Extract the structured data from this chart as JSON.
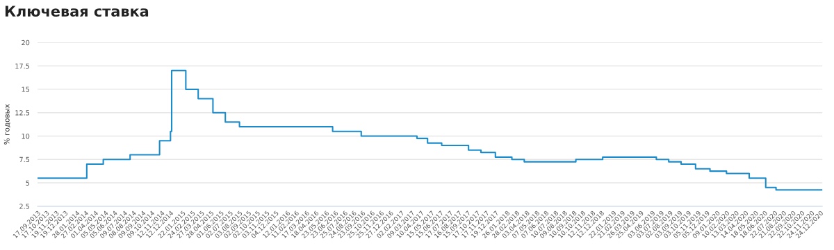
{
  "chart_data": {
    "type": "step",
    "title": "Ключевая ставка",
    "ylabel": "% годовых",
    "x": [
      "2013-09-17",
      "2014-03-03",
      "2014-04-28",
      "2014-07-28",
      "2014-11-05",
      "2014-12-12",
      "2014-12-16",
      "2015-02-02",
      "2015-03-16",
      "2015-05-05",
      "2015-06-16",
      "2015-08-03",
      "2016-06-14",
      "2016-09-19",
      "2017-03-27",
      "2017-05-02",
      "2017-06-19",
      "2017-09-18",
      "2017-10-30",
      "2017-12-18",
      "2018-02-12",
      "2018-03-26",
      "2018-09-17",
      "2018-12-17",
      "2019-06-17",
      "2019-07-29",
      "2019-09-09",
      "2019-10-28",
      "2019-12-16",
      "2020-02-10",
      "2020-04-27",
      "2020-06-22",
      "2020-07-27",
      "2020-12-31"
    ],
    "series": [
      {
        "color": "#1a8ccc",
        "values": [
          5.5,
          7,
          7.5,
          8,
          9.5,
          10.5,
          17,
          15,
          14,
          12.5,
          11.5,
          11,
          10.5,
          10,
          9.75,
          9.25,
          9,
          8.5,
          8.25,
          7.75,
          7.5,
          7.25,
          7.5,
          7.75,
          7.5,
          7.25,
          7,
          6.5,
          6.25,
          6,
          5.5,
          4.5,
          4.25,
          4.25
        ]
      }
    ],
    "xlim": [
      "2013-09-17",
      "2020-12-31"
    ],
    "xticks": [
      {
        "value": "2013-09-17",
        "label": "17.09.2013"
      },
      {
        "value": "2013-10-17",
        "label": "17.10.2013"
      },
      {
        "value": "2013-11-19",
        "label": "19.11.2013"
      },
      {
        "value": "2013-12-19",
        "label": "19.12.2013"
      },
      {
        "value": "2014-01-28",
        "label": "28.01.2014"
      },
      {
        "value": "2014-02-27",
        "label": "27.02.2014"
      },
      {
        "value": "2014-04-01",
        "label": "01.04.2014"
      },
      {
        "value": "2014-05-05",
        "label": "05.05.2014"
      },
      {
        "value": "2014-06-05",
        "label": "05.06.2014"
      },
      {
        "value": "2014-07-09",
        "label": "09.07.2014"
      },
      {
        "value": "2014-08-08",
        "label": "08.08.2014"
      },
      {
        "value": "2014-09-09",
        "label": "09.09.2014"
      },
      {
        "value": "2014-10-09",
        "label": "09.10.2014"
      },
      {
        "value": "2014-11-12",
        "label": "12.11.2014"
      },
      {
        "value": "2014-12-12",
        "label": "12.12.2014"
      },
      {
        "value": "2015-01-22",
        "label": "22.01.2015"
      },
      {
        "value": "2015-02-24",
        "label": "24.02.2015"
      },
      {
        "value": "2015-03-27",
        "label": "27.03.2015"
      },
      {
        "value": "2015-04-28",
        "label": "28.04.2015"
      },
      {
        "value": "2015-06-01",
        "label": "01.06.2015"
      },
      {
        "value": "2015-07-02",
        "label": "02.07.2015"
      },
      {
        "value": "2015-08-03",
        "label": "03.08.2015"
      },
      {
        "value": "2015-09-02",
        "label": "02.09.2015"
      },
      {
        "value": "2015-10-02",
        "label": "02.10.2015"
      },
      {
        "value": "2015-11-03",
        "label": "03.11.2015"
      },
      {
        "value": "2015-12-04",
        "label": "04.12.2015"
      },
      {
        "value": "2016-01-12",
        "label": "12.01.2016"
      },
      {
        "value": "2016-02-11",
        "label": "11.02.2016"
      },
      {
        "value": "2016-03-17",
        "label": "17.03.2016"
      },
      {
        "value": "2016-04-18",
        "label": "18.04.2016"
      },
      {
        "value": "2016-05-23",
        "label": "23.05.2016"
      },
      {
        "value": "2016-06-23",
        "label": "23.06.2016"
      },
      {
        "value": "2016-07-25",
        "label": "25.07.2016"
      },
      {
        "value": "2016-08-24",
        "label": "24.08.2016"
      },
      {
        "value": "2016-09-23",
        "label": "23.09.2016"
      },
      {
        "value": "2016-10-25",
        "label": "25.10.2016"
      },
      {
        "value": "2016-11-25",
        "label": "25.11.2016"
      },
      {
        "value": "2016-12-27",
        "label": "27.12.2016"
      },
      {
        "value": "2017-02-02",
        "label": "02.02.2017"
      },
      {
        "value": "2017-03-09",
        "label": "09.03.2017"
      },
      {
        "value": "2017-04-10",
        "label": "10.04.2017"
      },
      {
        "value": "2017-05-15",
        "label": "15.05.2017"
      },
      {
        "value": "2017-06-15",
        "label": "15.06.2017"
      },
      {
        "value": "2017-07-17",
        "label": "17.07.2017"
      },
      {
        "value": "2017-08-16",
        "label": "16.08.2017"
      },
      {
        "value": "2017-09-15",
        "label": "15.09.2017"
      },
      {
        "value": "2017-10-17",
        "label": "17.10.2017"
      },
      {
        "value": "2017-11-17",
        "label": "17.11.2017"
      },
      {
        "value": "2017-12-19",
        "label": "19.12.2017"
      },
      {
        "value": "2018-01-26",
        "label": "26.01.2018"
      },
      {
        "value": "2018-02-28",
        "label": "28.02.2018"
      },
      {
        "value": "2018-04-03",
        "label": "03.04.2018"
      },
      {
        "value": "2018-05-07",
        "label": "07.05.2018"
      },
      {
        "value": "2018-06-07",
        "label": "07.06.2018"
      },
      {
        "value": "2018-07-10",
        "label": "10.07.2018"
      },
      {
        "value": "2018-08-09",
        "label": "09.08.2018"
      },
      {
        "value": "2018-09-10",
        "label": "10.09.2018"
      },
      {
        "value": "2018-10-10",
        "label": "10.10.2018"
      },
      {
        "value": "2018-11-12",
        "label": "12.11.2018"
      },
      {
        "value": "2018-12-12",
        "label": "12.12.2018"
      },
      {
        "value": "2019-01-22",
        "label": "22.01.2019"
      },
      {
        "value": "2019-02-21",
        "label": "21.02.2019"
      },
      {
        "value": "2019-03-26",
        "label": "26.03.2019"
      },
      {
        "value": "2019-04-25",
        "label": "25.04.2019"
      },
      {
        "value": "2019-06-03",
        "label": "03.06.2019"
      },
      {
        "value": "2019-07-03",
        "label": "03.07.2019"
      },
      {
        "value": "2019-08-02",
        "label": "02.08.2019"
      },
      {
        "value": "2019-09-03",
        "label": "03.09.2019"
      },
      {
        "value": "2019-10-03",
        "label": "03.10.2019"
      },
      {
        "value": "2019-11-05",
        "label": "05.11.2019"
      },
      {
        "value": "2019-12-05",
        "label": "05.12.2019"
      },
      {
        "value": "2020-01-09",
        "label": "09.01.2020"
      },
      {
        "value": "2020-02-10",
        "label": "10.02.2020"
      },
      {
        "value": "2020-03-13",
        "label": "13.03.2020"
      },
      {
        "value": "2020-04-14",
        "label": "14.04.2020"
      },
      {
        "value": "2020-05-18",
        "label": "18.05.2020"
      },
      {
        "value": "2020-06-18",
        "label": "18.06.2020"
      },
      {
        "value": "2020-07-22",
        "label": "22.07.2020"
      },
      {
        "value": "2020-08-21",
        "label": "21.08.2020"
      },
      {
        "value": "2020-09-22",
        "label": "22.09.2020"
      },
      {
        "value": "2020-10-22",
        "label": "22.10.2020"
      },
      {
        "value": "2020-11-24",
        "label": "24.11.2020"
      },
      {
        "value": "2020-12-24",
        "label": "24.12.2020"
      }
    ],
    "ylim": [
      2.5,
      20
    ],
    "yticks": [
      2.5,
      5,
      7.5,
      10,
      12.5,
      15,
      17.5,
      20
    ],
    "grid": "y",
    "marker": "none",
    "line_style": "solid"
  }
}
